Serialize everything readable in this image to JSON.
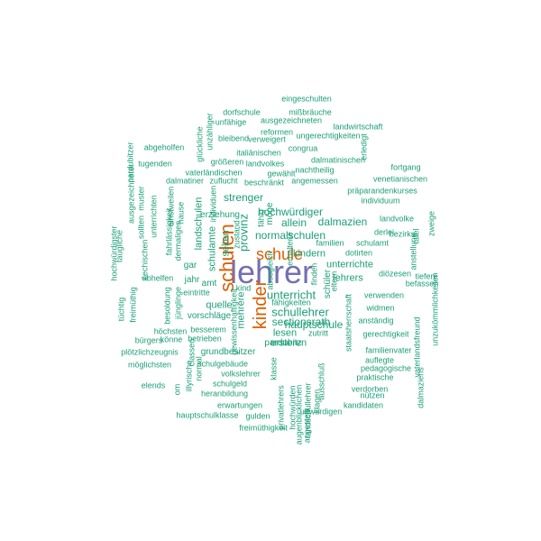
{
  "colors": {
    "teal": "#1b9e77",
    "orange": "#d95f02",
    "purple": "#7570b3"
  },
  "words": [
    {
      "text": "lehrer",
      "size": 36,
      "color": "purple",
      "rot": 0
    },
    {
      "text": "schulen",
      "size": 22,
      "color": "orange",
      "rot": 90
    },
    {
      "text": "kinder",
      "size": 20,
      "color": "orange",
      "rot": 90
    },
    {
      "text": "schule",
      "size": 18,
      "color": "orange",
      "rot": 0
    },
    {
      "text": "schullehrer",
      "size": 13,
      "color": "teal",
      "rot": 0
    },
    {
      "text": "unterricht",
      "size": 13,
      "color": "teal",
      "rot": 0
    },
    {
      "text": "provinz",
      "size": 13,
      "color": "teal",
      "rot": 90
    },
    {
      "text": "normalschulen",
      "size": 12,
      "color": "teal",
      "rot": 0
    },
    {
      "text": "hochwürdiger",
      "size": 12,
      "color": "teal",
      "rot": 0
    },
    {
      "text": "sectionsrath",
      "size": 12,
      "color": "teal",
      "rot": 0
    },
    {
      "text": "hauptschule",
      "size": 12,
      "color": "teal",
      "rot": 0
    },
    {
      "text": "strenger",
      "size": 12,
      "color": "teal",
      "rot": 0
    },
    {
      "text": "allein",
      "size": 12,
      "color": "teal",
      "rot": 0
    },
    {
      "text": "dalmazien",
      "size": 12,
      "color": "teal",
      "rot": 0
    },
    {
      "text": "kindern",
      "size": 11,
      "color": "teal",
      "rot": 0
    },
    {
      "text": "unterrichte",
      "size": 11,
      "color": "teal",
      "rot": 0
    },
    {
      "text": "lehrers",
      "size": 11,
      "color": "teal",
      "rot": 0
    },
    {
      "text": "schulamte",
      "size": 11,
      "color": "teal",
      "rot": 90
    },
    {
      "text": "landschulen",
      "size": 11,
      "color": "teal",
      "rot": 90
    },
    {
      "text": "selten",
      "size": 11,
      "color": "teal",
      "rot": 90
    },
    {
      "text": "quelle",
      "size": 11,
      "color": "teal",
      "rot": 0
    },
    {
      "text": "lesen",
      "size": 11,
      "color": "teal",
      "rot": 0
    },
    {
      "text": "ersteren",
      "size": 11,
      "color": "teal",
      "rot": 0
    },
    {
      "text": "mehrere",
      "size": 11,
      "color": "teal",
      "rot": 90
    },
    {
      "text": "vorschläge",
      "size": 10,
      "color": "teal",
      "rot": 0
    },
    {
      "text": "möge",
      "size": 10,
      "color": "teal",
      "rot": 90
    },
    {
      "text": "schüler",
      "size": 10,
      "color": "teal",
      "rot": 90
    },
    {
      "text": "pardubitz",
      "size": 10,
      "color": "teal",
      "rot": 0
    },
    {
      "text": "grundbesitzer",
      "size": 10,
      "color": "teal",
      "rot": 0
    },
    {
      "text": "erziehung",
      "size": 10,
      "color": "teal",
      "rot": 0
    },
    {
      "text": "jahr",
      "size": 10,
      "color": "teal",
      "rot": 0
    },
    {
      "text": "amt",
      "size": 10,
      "color": "teal",
      "rot": 0
    },
    {
      "text": "gar",
      "size": 10,
      "color": "teal",
      "rot": 0
    },
    {
      "text": "eintritte",
      "size": 9,
      "color": "teal",
      "rot": 0
    },
    {
      "text": "fähigkeiten",
      "size": 9,
      "color": "teal",
      "rot": 0
    },
    {
      "text": "kind",
      "size": 9,
      "color": "teal",
      "rot": 0
    },
    {
      "text": "eingeschulten",
      "size": 9,
      "color": "teal",
      "rot": 0
    },
    {
      "text": "mißbräuche",
      "size": 9,
      "color": "teal",
      "rot": 0
    },
    {
      "text": "dorfschule",
      "size": 9,
      "color": "teal",
      "rot": 0
    },
    {
      "text": "ausgezeichneten",
      "size": 9,
      "color": "teal",
      "rot": 0
    },
    {
      "text": "unfähige",
      "size": 9,
      "color": "teal",
      "rot": 0
    },
    {
      "text": "landwirtschaft",
      "size": 9,
      "color": "teal",
      "rot": 0
    },
    {
      "text": "reformen",
      "size": 9,
      "color": "teal",
      "rot": 0
    },
    {
      "text": "bleibend",
      "size": 9,
      "color": "teal",
      "rot": 0
    },
    {
      "text": "verweigert",
      "size": 9,
      "color": "teal",
      "rot": 0
    },
    {
      "text": "ungerechtigkeiten",
      "size": 9,
      "color": "teal",
      "rot": 0
    },
    {
      "text": "abgeholfen",
      "size": 9,
      "color": "teal",
      "rot": 0
    },
    {
      "text": "congrua",
      "size": 9,
      "color": "teal",
      "rot": 0
    },
    {
      "text": "italiänischen",
      "size": 9,
      "color": "teal",
      "rot": 0
    },
    {
      "text": "dalmatinischen",
      "size": 9,
      "color": "teal",
      "rot": 0
    },
    {
      "text": "tugenden",
      "size": 9,
      "color": "teal",
      "rot": 0
    },
    {
      "text": "größeren",
      "size": 9,
      "color": "teal",
      "rot": 0
    },
    {
      "text": "landvolkes",
      "size": 9,
      "color": "teal",
      "rot": 0
    },
    {
      "text": "nachtheilig",
      "size": 9,
      "color": "teal",
      "rot": 0
    },
    {
      "text": "fortgang",
      "size": 9,
      "color": "teal",
      "rot": 0
    },
    {
      "text": "vaterländischen",
      "size": 9,
      "color": "teal",
      "rot": 0
    },
    {
      "text": "gewählt",
      "size": 9,
      "color": "teal",
      "rot": 0
    },
    {
      "text": "venetianischen",
      "size": 9,
      "color": "teal",
      "rot": 0
    },
    {
      "text": "dalmatiner",
      "size": 9,
      "color": "teal",
      "rot": 0
    },
    {
      "text": "zuflucht",
      "size": 9,
      "color": "teal",
      "rot": 0
    },
    {
      "text": "beschränkt",
      "size": 9,
      "color": "teal",
      "rot": 0
    },
    {
      "text": "angemessen",
      "size": 9,
      "color": "teal",
      "rot": 0
    },
    {
      "text": "präparandenkurses",
      "size": 9,
      "color": "teal",
      "rot": 0
    },
    {
      "text": "individuum",
      "size": 9,
      "color": "teal",
      "rot": 0
    },
    {
      "text": "landvolke",
      "size": 9,
      "color": "teal",
      "rot": 0
    },
    {
      "text": "derlei",
      "size": 9,
      "color": "teal",
      "rot": 0
    },
    {
      "text": "familien",
      "size": 9,
      "color": "teal",
      "rot": 0
    },
    {
      "text": "schulamt",
      "size": 9,
      "color": "teal",
      "rot": 0
    },
    {
      "text": "bezirks",
      "size": 9,
      "color": "teal",
      "rot": 0
    },
    {
      "text": "dotirten",
      "size": 9,
      "color": "teal",
      "rot": 0
    },
    {
      "text": "diözesen",
      "size": 9,
      "color": "teal",
      "rot": 0
    },
    {
      "text": "tiefere",
      "size": 9,
      "color": "teal",
      "rot": 0
    },
    {
      "text": "befassen",
      "size": 9,
      "color": "teal",
      "rot": 0
    },
    {
      "text": "abhelfen",
      "size": 9,
      "color": "teal",
      "rot": 0
    },
    {
      "text": "verwenden",
      "size": 9,
      "color": "teal",
      "rot": 0
    },
    {
      "text": "widmen",
      "size": 9,
      "color": "teal",
      "rot": 0
    },
    {
      "text": "anständig",
      "size": 9,
      "color": "teal",
      "rot": 0
    },
    {
      "text": "höchsten",
      "size": 9,
      "color": "teal",
      "rot": 0
    },
    {
      "text": "besserem",
      "size": 9,
      "color": "teal",
      "rot": 0
    },
    {
      "text": "betrieben",
      "size": 9,
      "color": "teal",
      "rot": 0
    },
    {
      "text": "könne",
      "size": 9,
      "color": "teal",
      "rot": 0
    },
    {
      "text": "bürgers",
      "size": 9,
      "color": "teal",
      "rot": 0
    },
    {
      "text": "zutritt",
      "size": 9,
      "color": "teal",
      "rot": 0
    },
    {
      "text": "gerechtigkeit",
      "size": 9,
      "color": "teal",
      "rot": 0
    },
    {
      "text": "familienvater",
      "size": 9,
      "color": "teal",
      "rot": 0
    },
    {
      "text": "plötzlichzeugnis",
      "size": 9,
      "color": "teal",
      "rot": 0
    },
    {
      "text": "auflegte",
      "size": 9,
      "color": "teal",
      "rot": 0
    },
    {
      "text": "möglichsten",
      "size": 9,
      "color": "teal",
      "rot": 0
    },
    {
      "text": "schulgebäude",
      "size": 9,
      "color": "teal",
      "rot": 0
    },
    {
      "text": "pedagogische",
      "size": 9,
      "color": "teal",
      "rot": 0
    },
    {
      "text": "volkslehrer",
      "size": 9,
      "color": "teal",
      "rot": 0
    },
    {
      "text": "praktische",
      "size": 9,
      "color": "teal",
      "rot": 0
    },
    {
      "text": "elends",
      "size": 9,
      "color": "teal",
      "rot": 0
    },
    {
      "text": "schulgeld",
      "size": 9,
      "color": "teal",
      "rot": 0
    },
    {
      "text": "verdorben",
      "size": 9,
      "color": "teal",
      "rot": 0
    },
    {
      "text": "heranbildung",
      "size": 9,
      "color": "teal",
      "rot": 0
    },
    {
      "text": "nützen",
      "size": 9,
      "color": "teal",
      "rot": 0
    },
    {
      "text": "erwartungen",
      "size": 9,
      "color": "teal",
      "rot": 0
    },
    {
      "text": "kandidaten",
      "size": 9,
      "color": "teal",
      "rot": 0
    },
    {
      "text": "hauptschulklasse",
      "size": 9,
      "color": "teal",
      "rot": 0
    },
    {
      "text": "gulden",
      "size": 9,
      "color": "teal",
      "rot": 0
    },
    {
      "text": "unwürdigen",
      "size": 9,
      "color": "teal",
      "rot": 0
    },
    {
      "text": "freimüthigkeit",
      "size": 9,
      "color": "teal",
      "rot": 0
    },
    {
      "text": "pardubitzer",
      "size": 9,
      "color": "teal",
      "rot": 90
    },
    {
      "text": "glückliche",
      "size": 9,
      "color": "teal",
      "rot": 90
    },
    {
      "text": "unzähliger",
      "size": 9,
      "color": "teal",
      "rot": 90
    },
    {
      "text": "erledigt",
      "size": 9,
      "color": "teal",
      "rot": 90
    },
    {
      "text": "ausgezeichneter",
      "size": 9,
      "color": "teal",
      "rot": 90
    },
    {
      "text": "muster",
      "size": 9,
      "color": "teal",
      "rot": 90
    },
    {
      "text": "unterrichten",
      "size": 9,
      "color": "teal",
      "rot": 90
    },
    {
      "text": "einstweilen",
      "size": 9,
      "color": "teal",
      "rot": 90
    },
    {
      "text": "hause",
      "size": 9,
      "color": "teal",
      "rot": 90
    },
    {
      "text": "sollten",
      "size": 9,
      "color": "teal",
      "rot": 90
    },
    {
      "text": "taugliche",
      "size": 9,
      "color": "teal",
      "rot": 90
    },
    {
      "text": "hochwürdigster",
      "size": 9,
      "color": "teal",
      "rot": 90
    },
    {
      "text": "fahrlässigkeit",
      "size": 9,
      "color": "teal",
      "rot": 90
    },
    {
      "text": "dermaligen",
      "size": 9,
      "color": "teal",
      "rot": 90
    },
    {
      "text": "čechischen",
      "size": 9,
      "color": "teal",
      "rot": 90
    },
    {
      "text": "tüchtig",
      "size": 9,
      "color": "teal",
      "rot": 90
    },
    {
      "text": "freimüthig",
      "size": 9,
      "color": "teal",
      "rot": 90
    },
    {
      "text": "besoldung",
      "size": 9,
      "color": "teal",
      "rot": 90
    },
    {
      "text": "jünglinge",
      "size": 9,
      "color": "teal",
      "rot": 90
    },
    {
      "text": "individuen",
      "size": 9,
      "color": "teal",
      "rot": 90
    },
    {
      "text": "fähig",
      "size": 9,
      "color": "teal",
      "rot": 90
    },
    {
      "text": "zustand",
      "size": 9,
      "color": "teal",
      "rot": 90
    },
    {
      "text": "erhaltene",
      "size": 9,
      "color": "teal",
      "rot": 90
    },
    {
      "text": "finden",
      "size": 9,
      "color": "teal",
      "rot": 90
    },
    {
      "text": "eltern",
      "size": 9,
      "color": "teal",
      "rot": 90
    },
    {
      "text": "tafel",
      "size": 9,
      "color": "teal",
      "rot": 90
    },
    {
      "text": "anstellung",
      "size": 9,
      "color": "teal",
      "rot": 90
    },
    {
      "text": "zweige",
      "size": 9,
      "color": "teal",
      "rot": 90
    },
    {
      "text": "vaterlandsfreund",
      "size": 9,
      "color": "teal",
      "rot": 90
    },
    {
      "text": "unzukömmlichkeiten",
      "size": 9,
      "color": "teal",
      "rot": 90
    },
    {
      "text": "staatsherrschaft",
      "size": 9,
      "color": "teal",
      "rot": 90
    },
    {
      "text": "gewissenhaftigkeit",
      "size": 9,
      "color": "teal",
      "rot": 90
    },
    {
      "text": "om",
      "size": 9,
      "color": "teal",
      "rot": 90
    },
    {
      "text": "illyrische",
      "size": 9,
      "color": "teal",
      "rot": 90
    },
    {
      "text": "normal",
      "size": 9,
      "color": "teal",
      "rot": 90
    },
    {
      "text": "classen",
      "size": 9,
      "color": "teal",
      "rot": 90
    },
    {
      "text": "klasse",
      "size": 9,
      "color": "teal",
      "rot": 90
    },
    {
      "text": "privatlehrers",
      "size": 9,
      "color": "teal",
      "rot": 90
    },
    {
      "text": "hochwürden",
      "size": 9,
      "color": "teal",
      "rot": 90
    },
    {
      "text": "augenblicklichen",
      "size": 9,
      "color": "teal",
      "rot": 90
    },
    {
      "text": "landschullehrer",
      "size": 9,
      "color": "teal",
      "rot": 90
    },
    {
      "text": "klagen",
      "size": 9,
      "color": "teal",
      "rot": 90
    },
    {
      "text": "angestellt",
      "size": 9,
      "color": "teal",
      "rot": 90
    },
    {
      "text": "ausschluß",
      "size": 9,
      "color": "teal",
      "rot": 90
    },
    {
      "text": "dalmaziens",
      "size": 9,
      "color": "teal",
      "rot": 90
    },
    {
      "text": "absogleich",
      "size": 9,
      "color": "teal",
      "rot": 90
    }
  ]
}
